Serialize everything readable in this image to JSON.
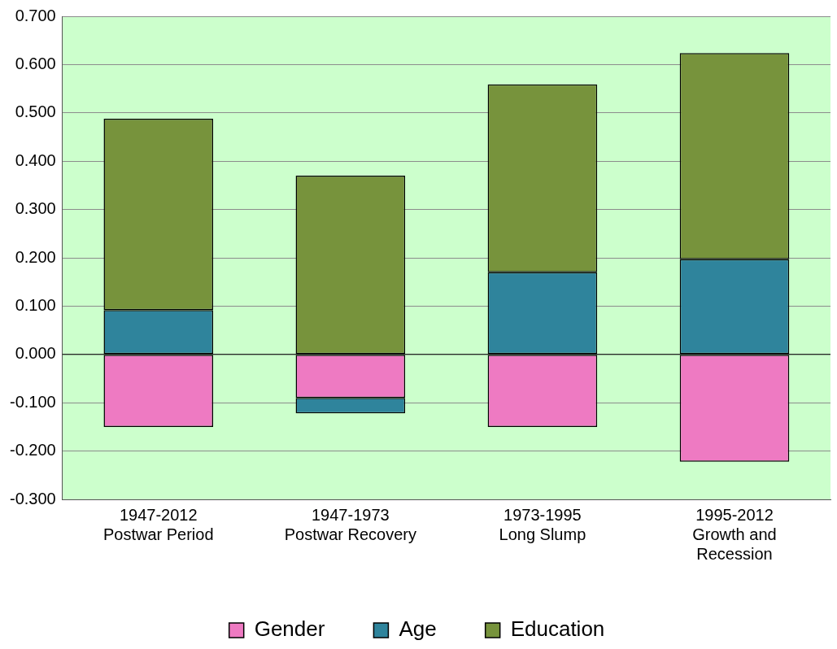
{
  "chart_data": {
    "type": "bar",
    "stacked": true,
    "categories": [
      "1947-2012\nPostwar Period",
      "1947-1973\nPostwar Recovery",
      "1973-1995\nLong Slump",
      "1995-2012\nGrowth and\nRecession"
    ],
    "series": [
      {
        "name": "Gender",
        "color": "#ee7ac2",
        "values": [
          -0.15,
          -0.09,
          -0.15,
          -0.222
        ]
      },
      {
        "name": "Age",
        "color": "#2f849c",
        "values": [
          0.092,
          -0.032,
          0.17,
          0.197
        ]
      },
      {
        "name": "Education",
        "color": "#77933c",
        "values": [
          0.396,
          0.37,
          0.389,
          0.427
        ]
      }
    ],
    "ylim": [
      -0.3,
      0.7
    ],
    "yticks": [
      {
        "value": -0.3,
        "label": "-0.300"
      },
      {
        "value": -0.2,
        "label": "-0.200"
      },
      {
        "value": -0.1,
        "label": "-0.100"
      },
      {
        "value": 0,
        "label": "0.000"
      },
      {
        "value": 0.1,
        "label": "0.100"
      },
      {
        "value": 0.2,
        "label": "0.200"
      },
      {
        "value": 0.3,
        "label": "0.300"
      },
      {
        "value": 0.4,
        "label": "0.400"
      },
      {
        "value": 0.5,
        "label": "0.500"
      },
      {
        "value": 0.6,
        "label": "0.600"
      },
      {
        "value": 0.7,
        "label": "0.700"
      }
    ],
    "grid": "y",
    "legend": "bottom"
  }
}
